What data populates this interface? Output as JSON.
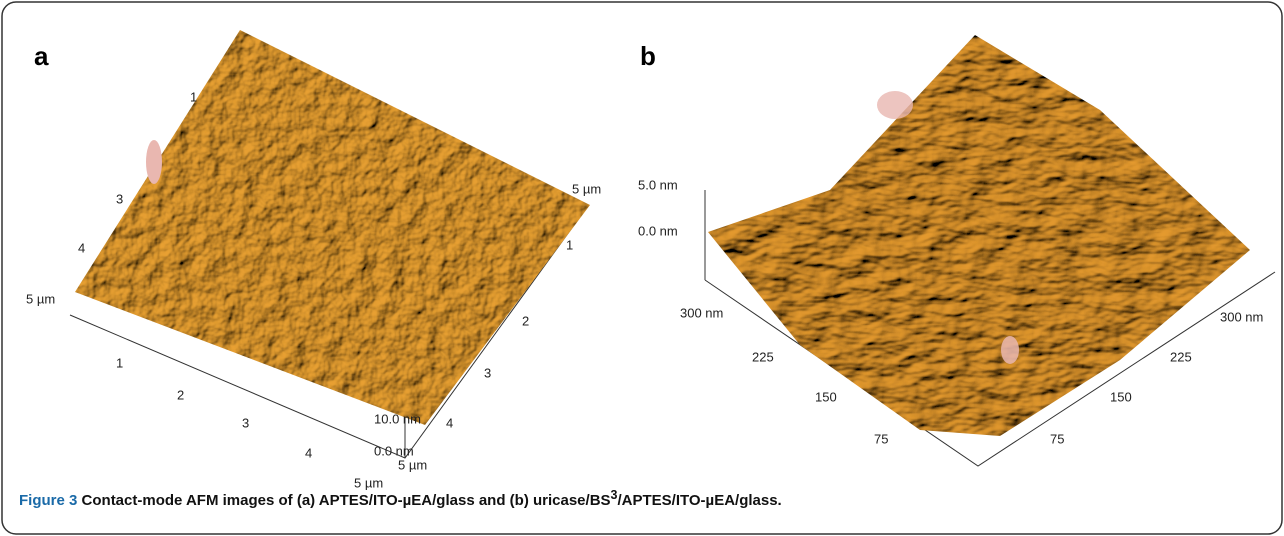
{
  "figure": {
    "panels": [
      {
        "label": "a",
        "left_edge_ticks": [
          "1",
          "3",
          "4"
        ],
        "top_right_label": "5 µm",
        "right_axis_ticks": [
          "1",
          "2",
          "3",
          "4"
        ],
        "left_corner_label": "5 µm",
        "bottom_axis_ticks": [
          "1",
          "2",
          "3",
          "4"
        ],
        "z_labels": [
          "10.0 nm",
          "0.0 nm"
        ],
        "corner_labels": [
          "5 µm",
          "5 µm"
        ]
      },
      {
        "label": "b",
        "z_labels": [
          "5.0 nm",
          "0.0 nm"
        ],
        "left_axis_ticks": [
          "300 nm",
          "225",
          "150",
          "75"
        ],
        "right_axis_ticks": [
          "300 nm",
          "225",
          "150",
          "75"
        ]
      }
    ],
    "caption": {
      "label": "Figure 3",
      "text": "Contact-mode AFM images of (a) APTES/ITO-µEA/glass and (b) uricase/BS",
      "superscript": "3",
      "text_end": "/APTES/ITO-µEA/glass."
    }
  }
}
